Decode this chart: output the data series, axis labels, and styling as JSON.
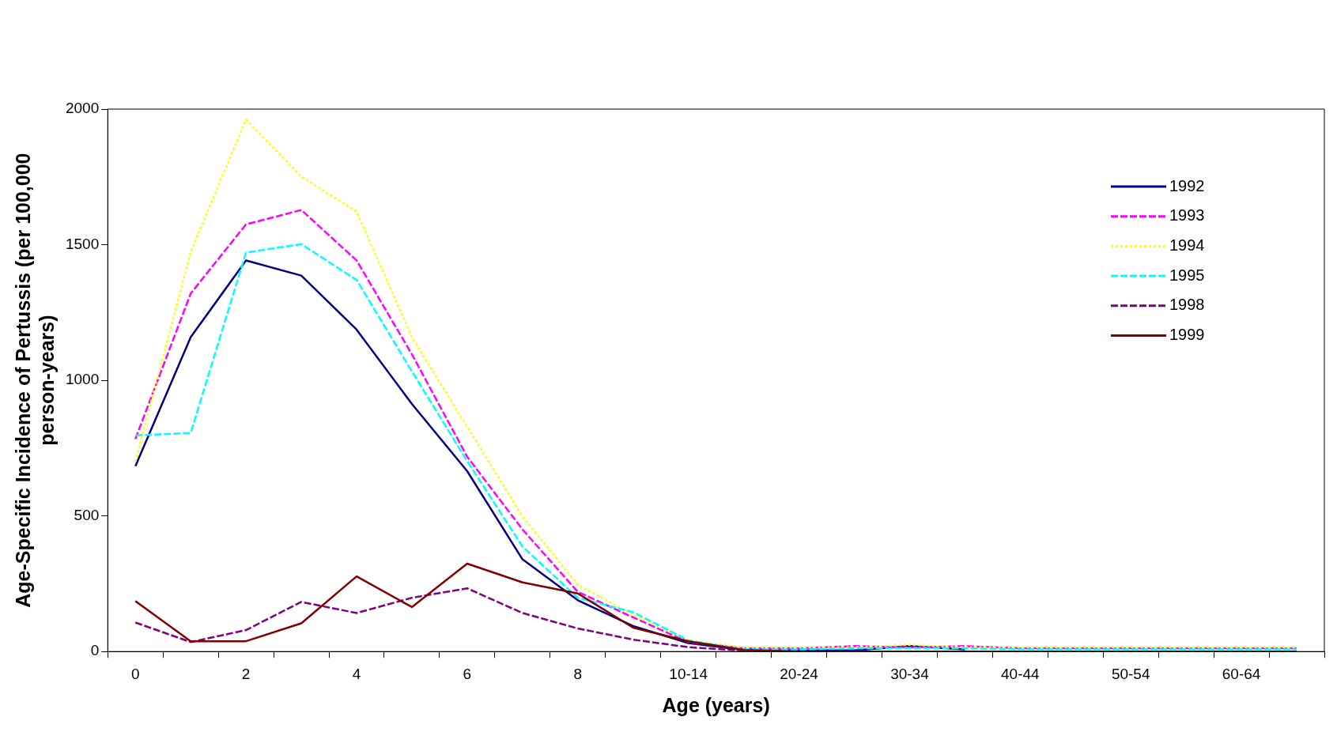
{
  "chart_data": {
    "type": "line",
    "xlabel": "Age (years)",
    "ylabel": "Age-Specific Incidence of Pertussis (per 100,000 person-years)",
    "categories": [
      "0",
      null,
      "2",
      null,
      "4",
      null,
      "6",
      null,
      "8",
      null,
      "10-14",
      null,
      "20-24",
      null,
      "30-34",
      null,
      "40-44",
      null,
      "50-54",
      null,
      "60-64",
      null
    ],
    "ylim": [
      0,
      2000
    ],
    "yticks": [
      0,
      500,
      1000,
      1500,
      2000
    ],
    "grid": false,
    "legend": "top right",
    "marker": "none",
    "series": [
      {
        "name": "1992",
        "color": "#000080",
        "line_style": "solid",
        "values": [
          683,
          1159,
          1442,
          1386,
          1187,
          913,
          665,
          340,
          189,
          94,
          31,
          6,
          4,
          4,
          20,
          8,
          null,
          null,
          null,
          null,
          null,
          null
        ]
      },
      {
        "name": "1993",
        "color": "#ff00ff",
        "line_style": "dashed",
        "values": [
          784,
          1320,
          1575,
          1628,
          1442,
          1096,
          718,
          450,
          220,
          126,
          35,
          12,
          12,
          20,
          15,
          20,
          12,
          12,
          12,
          12,
          12,
          12
        ]
      },
      {
        "name": "1994",
        "color": "#ffff00",
        "line_style": "dotted",
        "values": [
          700,
          1474,
          1962,
          1751,
          1622,
          1159,
          828,
          498,
          246,
          135,
          41,
          16,
          16,
          16,
          25,
          16,
          16,
          16,
          16,
          16,
          16,
          16
        ]
      },
      {
        "name": "1995",
        "color": "#00ffff",
        "line_style": "dashed",
        "values": [
          797,
          806,
          1471,
          1502,
          1370,
          1033,
          702,
          387,
          198,
          145,
          41,
          8,
          8,
          12,
          12,
          12,
          8,
          8,
          8,
          8,
          8,
          8
        ]
      },
      {
        "name": "1998",
        "color": "#800080",
        "line_style": "dashed",
        "values": [
          107,
          35,
          79,
          183,
          142,
          198,
          233,
          142,
          85,
          44,
          16,
          3,
          null,
          null,
          null,
          null,
          null,
          null,
          null,
          null,
          null,
          null
        ]
      },
      {
        "name": "1999",
        "color": "#800000",
        "line_style": "solid",
        "values": [
          186,
          38,
          38,
          104,
          277,
          164,
          324,
          255,
          214,
          88,
          38,
          6,
          0,
          0,
          0,
          0,
          0,
          0,
          0,
          0,
          0,
          0
        ]
      }
    ]
  }
}
